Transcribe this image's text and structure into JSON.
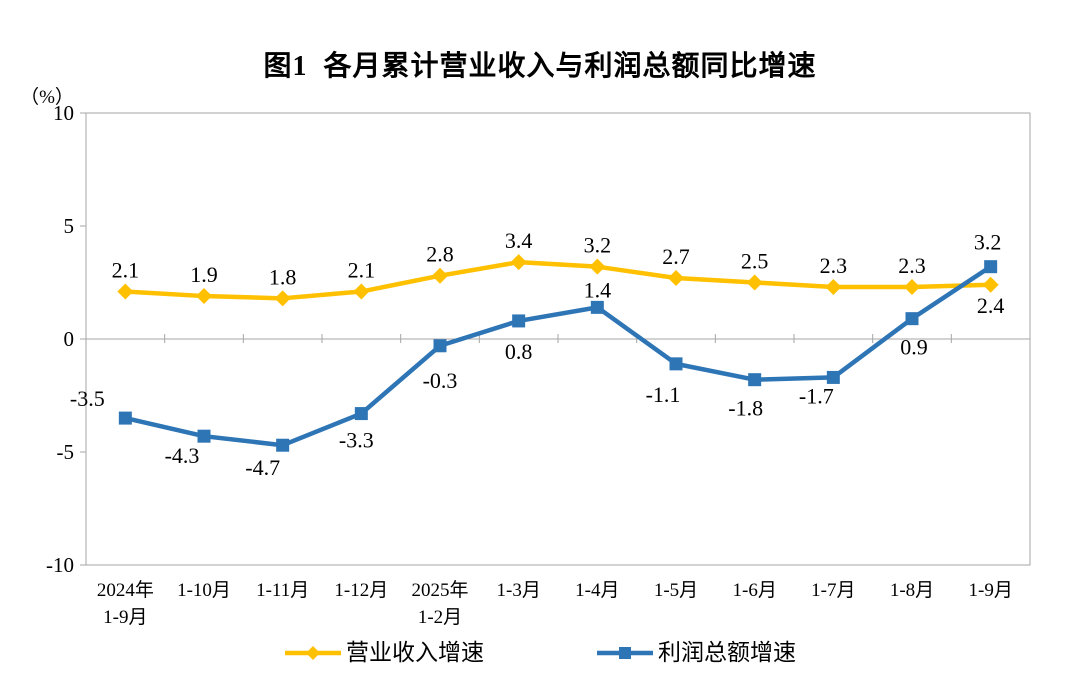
{
  "chart": {
    "title": "图1  各月累计营业收入与利润总额同比增速"
  },
  "chart_data": {
    "type": "line",
    "title": "图1  各月累计营业收入与利润总额同比增速",
    "unit_label": "（%）",
    "categories": [
      "2024年\n1-9月",
      "1-10月",
      "1-11月",
      "1-12月",
      "2025年\n1-2月",
      "1-3月",
      "1-4月",
      "1-5月",
      "1-6月",
      "1-7月",
      "1-8月",
      "1-9月"
    ],
    "series": [
      {
        "name": "营业收入增速",
        "color": "#FFC000",
        "marker": "diamond",
        "values": [
          2.1,
          1.9,
          1.8,
          2.1,
          2.8,
          3.4,
          3.2,
          2.7,
          2.5,
          2.3,
          2.3,
          2.4
        ],
        "label_offsets": [
          [
            0,
            -14
          ],
          [
            0,
            -14
          ],
          [
            0,
            -14
          ],
          [
            0,
            -14
          ],
          [
            0,
            -14
          ],
          [
            0,
            -14
          ],
          [
            0,
            -14
          ],
          [
            0,
            -14
          ],
          [
            0,
            -14
          ],
          [
            0,
            -14
          ],
          [
            0,
            -14
          ],
          [
            0,
            28
          ]
        ]
      },
      {
        "name": "利润总额增速",
        "color": "#2E75B6",
        "marker": "square",
        "values": [
          -3.5,
          -4.3,
          -4.7,
          -3.3,
          -0.3,
          0.8,
          1.4,
          -1.1,
          -1.8,
          -1.7,
          0.9,
          3.2
        ],
        "label_offsets": [
          [
            -38,
            -12
          ],
          [
            -22,
            27
          ],
          [
            -20,
            30
          ],
          [
            -5,
            34
          ],
          [
            0,
            42
          ],
          [
            0,
            38
          ],
          [
            0,
            -10
          ],
          [
            -13,
            38
          ],
          [
            -9,
            36
          ],
          [
            -17,
            26
          ],
          [
            2,
            36
          ],
          [
            -3,
            -17
          ]
        ]
      }
    ],
    "ylim": [
      -10,
      10
    ],
    "yticks": [
      10,
      5,
      0,
      -5,
      -10
    ],
    "xlabel": "",
    "ylabel": "（%）",
    "grid": "zero-line-only",
    "legend_position": "bottom",
    "axis_color": "#A6A6A6",
    "label_color": "#000000"
  }
}
